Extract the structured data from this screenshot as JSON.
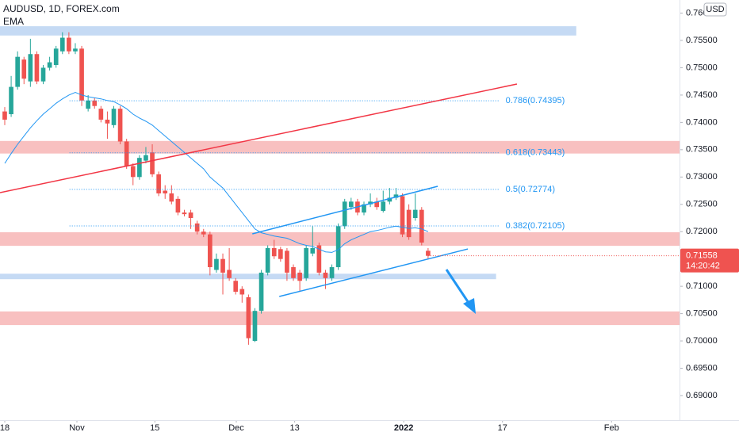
{
  "chart_data": {
    "type": "candlestick",
    "title": "AUDUSD, 1D, FOREX.com",
    "currency": "USD",
    "up_color": "#26a69a",
    "down_color": "#ef5350",
    "open": [
      0.742,
      0.7415,
      0.7465,
      0.7515,
      0.7475,
      0.7525,
      0.7475,
      0.75,
      0.7505,
      0.753,
      0.7555,
      0.753,
      0.7535,
      0.7425,
      0.744,
      0.7425,
      0.7405,
      0.7395,
      0.7425,
      0.7365,
      0.732,
      0.73,
      0.733,
      0.7345,
      0.7305,
      0.7275,
      0.727,
      0.726,
      0.7235,
      0.7235,
      0.7215,
      0.72,
      0.7195,
      0.713,
      0.715,
      0.713,
      0.711,
      0.7095,
      0.708,
      0.7,
      0.7055,
      0.7125,
      0.717,
      0.7168,
      0.7165,
      0.7135,
      0.7125,
      0.7115,
      0.716,
      0.7175,
      0.7125,
      0.7115,
      0.7135,
      0.721,
      0.7245,
      0.7255,
      0.7235,
      0.725,
      0.7255,
      0.7238,
      0.7255,
      0.7262,
      0.7265,
      0.724,
      0.7225,
      0.724,
      0.7165
    ],
    "high": [
      0.7428,
      0.7485,
      0.753,
      0.752,
      0.7553,
      0.753,
      0.7505,
      0.752,
      0.754,
      0.7565,
      0.7565,
      0.7545,
      0.754,
      0.745,
      0.7445,
      0.743,
      0.742,
      0.743,
      0.743,
      0.737,
      0.7325,
      0.734,
      0.7355,
      0.736,
      0.731,
      0.7285,
      0.7285,
      0.7265,
      0.724,
      0.724,
      0.722,
      0.7205,
      0.72,
      0.716,
      0.716,
      0.717,
      0.7115,
      0.71,
      0.7085,
      0.706,
      0.713,
      0.7175,
      0.7185,
      0.7172,
      0.717,
      0.714,
      0.713,
      0.7175,
      0.721,
      0.718,
      0.713,
      0.714,
      0.7215,
      0.726,
      0.7262,
      0.726,
      0.7255,
      0.727,
      0.7262,
      0.7275,
      0.728,
      0.728,
      0.727,
      0.725,
      0.727,
      0.7245,
      0.717
    ],
    "low": [
      0.7395,
      0.741,
      0.746,
      0.747,
      0.7465,
      0.747,
      0.747,
      0.7495,
      0.75,
      0.7525,
      0.7525,
      0.7525,
      0.743,
      0.742,
      0.7425,
      0.74,
      0.737,
      0.739,
      0.736,
      0.7315,
      0.7285,
      0.7295,
      0.7325,
      0.73,
      0.7265,
      0.726,
      0.725,
      0.723,
      0.7228,
      0.7205,
      0.7195,
      0.719,
      0.712,
      0.7125,
      0.7085,
      0.711,
      0.7085,
      0.707,
      0.6993,
      0.6998,
      0.705,
      0.712,
      0.715,
      0.7145,
      0.711,
      0.711,
      0.709,
      0.711,
      0.7155,
      0.712,
      0.7095,
      0.711,
      0.713,
      0.7205,
      0.724,
      0.723,
      0.723,
      0.7245,
      0.724,
      0.7235,
      0.725,
      0.7258,
      0.719,
      0.7185,
      0.722,
      0.7175,
      0.715
    ],
    "close": [
      0.7405,
      0.7465,
      0.752,
      0.748,
      0.7525,
      0.7475,
      0.75,
      0.751,
      0.7535,
      0.7555,
      0.753,
      0.7535,
      0.744,
      0.744,
      0.743,
      0.7405,
      0.7398,
      0.7425,
      0.7365,
      0.732,
      0.73,
      0.7335,
      0.734,
      0.7305,
      0.727,
      0.727,
      0.7255,
      0.7235,
      0.7232,
      0.7225,
      0.72,
      0.7195,
      0.7135,
      0.715,
      0.7125,
      0.7115,
      0.709,
      0.7085,
      0.7005,
      0.7055,
      0.7125,
      0.717,
      0.7155,
      0.715,
      0.7125,
      0.7115,
      0.711,
      0.717,
      0.717,
      0.7125,
      0.7115,
      0.7135,
      0.721,
      0.7255,
      0.7255,
      0.7235,
      0.725,
      0.7255,
      0.7245,
      0.7255,
      0.7262,
      0.7268,
      0.7195,
      0.719,
      0.724,
      0.718,
      0.71558
    ],
    "countdown": "14:20:42",
    "ema": {
      "name": "EMA",
      "color": "#2196f3",
      "values": [
        0.7325,
        0.7343,
        0.736,
        0.7375,
        0.739,
        0.7403,
        0.7415,
        0.7425,
        0.7435,
        0.7443,
        0.745,
        0.7455,
        0.745,
        0.7447,
        0.7445,
        0.7443,
        0.744,
        0.7438,
        0.7432,
        0.7425,
        0.7415,
        0.7408,
        0.7402,
        0.7395,
        0.7385,
        0.7375,
        0.7365,
        0.7355,
        0.7345,
        0.7335,
        0.7325,
        0.7315,
        0.73,
        0.729,
        0.728,
        0.7265,
        0.725,
        0.7235,
        0.722,
        0.7205,
        0.7198,
        0.7195,
        0.7192,
        0.719,
        0.7188,
        0.7183,
        0.7178,
        0.7175,
        0.7173,
        0.7168,
        0.7163,
        0.7162,
        0.7167,
        0.7178,
        0.7185,
        0.719,
        0.7195,
        0.72,
        0.7202,
        0.7205,
        0.7208,
        0.721,
        0.7208,
        0.7206,
        0.7207,
        0.7205,
        0.72
      ]
    },
    "xlim": [
      -0.74,
      105.2
    ],
    "ylim": [
      0.6855,
      0.7624
    ],
    "xticks": [
      {
        "value": 0,
        "label": "18"
      },
      {
        "value": 11.25,
        "label": "Nov"
      },
      {
        "value": 23.4,
        "label": "15"
      },
      {
        "value": 36.1,
        "label": "Dec"
      },
      {
        "value": 45.2,
        "label": "13"
      },
      {
        "value": 62.2,
        "label": "2022"
      },
      {
        "value": 77.6,
        "label": "17"
      },
      {
        "value": 94.6,
        "label": "Feb"
      }
    ],
    "yticks": [
      {
        "value": 0.76,
        "label": "0.76000"
      },
      {
        "value": 0.755,
        "label": "0.75500"
      },
      {
        "value": 0.75,
        "label": "0.75000"
      },
      {
        "value": 0.745,
        "label": "0.74500"
      },
      {
        "value": 0.74,
        "label": "0.74000"
      },
      {
        "value": 0.735,
        "label": "0.73500"
      },
      {
        "value": 0.73,
        "label": "0.73000"
      },
      {
        "value": 0.725,
        "label": "0.72500"
      },
      {
        "value": 0.72,
        "label": "0.72000"
      },
      {
        "value": 0.715,
        "label": "0.71500"
      },
      {
        "value": 0.71,
        "label": "0.71000"
      },
      {
        "value": 0.705,
        "label": "0.70500"
      },
      {
        "value": 0.7,
        "label": "0.70000"
      },
      {
        "value": 0.695,
        "label": "0.69500"
      },
      {
        "value": 0.69,
        "label": "0.69000"
      }
    ],
    "zones": [
      {
        "from": -0.74,
        "to": 89.1,
        "low": 0.7559,
        "high": 0.7576,
        "color": "#bbd4f2"
      },
      {
        "from": -0.74,
        "to": 105.2,
        "low": 0.7343,
        "high": 0.7366,
        "color": "#f7b5b5"
      },
      {
        "from": -0.74,
        "to": 105.2,
        "low": 0.7174,
        "high": 0.7199,
        "color": "#f7b5b5"
      },
      {
        "from": -0.74,
        "to": 76.6,
        "low": 0.7113,
        "high": 0.7123,
        "color": "#bbd4f2"
      },
      {
        "from": -0.74,
        "to": 105.2,
        "low": 0.7029,
        "high": 0.7054,
        "color": "#f7b5b5"
      }
    ],
    "fib_levels": [
      {
        "label": "0.786(0.74395)",
        "value": 0.74395,
        "from": 10.1,
        "to": 77.1
      },
      {
        "label": "0.618(0.73443)",
        "value": 0.73443,
        "from": 10.1,
        "to": 77.1
      },
      {
        "label": "0.5(0.72774)",
        "value": 0.72774,
        "from": 10.1,
        "to": 77.1
      },
      {
        "label": "0.382(0.72105)",
        "value": 0.72105,
        "from": 10.1,
        "to": 77.1
      }
    ],
    "fib_color": "#2196f3",
    "trend_lines": [
      {
        "color": "#f23645",
        "x": [
          -0.74,
          79.85
        ],
        "y": [
          0.72714,
          0.74702
        ]
      },
      {
        "color": "#2196f3",
        "x": [
          38.6,
          67.5
        ],
        "y": [
          0.7196,
          0.7283
        ]
      },
      {
        "color": "#2196f3",
        "x": [
          42.8,
          72.2
        ],
        "y": [
          0.70813,
          0.71683
        ]
      }
    ]
  }
}
